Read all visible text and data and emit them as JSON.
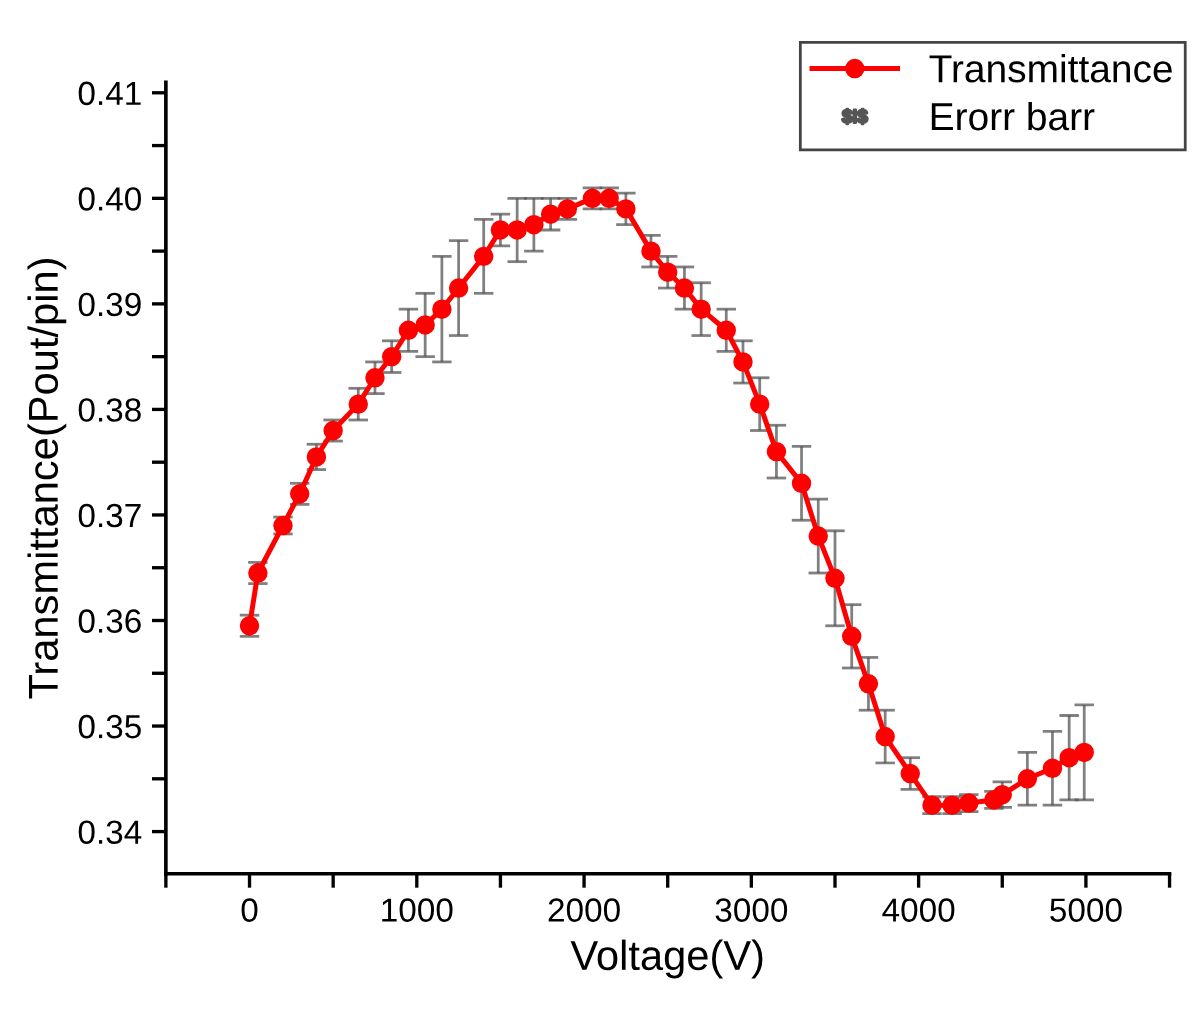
{
  "chart_data": {
    "type": "line",
    "xlabel": "Voltage(V)",
    "ylabel": "Transmittance(Pout/pin)",
    "x": [
      0,
      50,
      200,
      300,
      400,
      500,
      650,
      750,
      850,
      950,
      1050,
      1150,
      1250,
      1400,
      1500,
      1600,
      1700,
      1800,
      1900,
      2050,
      2150,
      2250,
      2400,
      2500,
      2600,
      2700,
      2850,
      2950,
      3050,
      3150,
      3300,
      3400,
      3500,
      3600,
      3700,
      3800,
      3950,
      4080,
      4200,
      4300,
      4450,
      4500,
      4650,
      4800,
      4900,
      4990
    ],
    "series": [
      {
        "name": "Transmittance",
        "color": "#ff0000",
        "values": [
          0.3595,
          0.3645,
          0.369,
          0.372,
          0.3755,
          0.378,
          0.3805,
          0.383,
          0.385,
          0.3875,
          0.388,
          0.3895,
          0.3915,
          0.3945,
          0.397,
          0.397,
          0.3975,
          0.3985,
          0.399,
          0.4,
          0.4,
          0.399,
          0.395,
          0.393,
          0.3915,
          0.3895,
          0.3875,
          0.3845,
          0.3805,
          0.376,
          0.373,
          0.368,
          0.364,
          0.3585,
          0.354,
          0.349,
          0.3455,
          0.3425,
          0.3425,
          0.3427,
          0.343,
          0.3435,
          0.345,
          0.346,
          0.347,
          0.3475
        ],
        "errors": [
          0.001,
          0.001,
          0.0008,
          0.001,
          0.0012,
          0.001,
          0.0015,
          0.0015,
          0.0015,
          0.002,
          0.003,
          0.005,
          0.0045,
          0.0035,
          0.0015,
          0.003,
          0.0025,
          0.0015,
          0.001,
          0.001,
          0.001,
          0.0015,
          0.0015,
          0.0015,
          0.002,
          0.0025,
          0.002,
          0.002,
          0.0025,
          0.0025,
          0.0035,
          0.0035,
          0.0045,
          0.003,
          0.0025,
          0.0025,
          0.0015,
          0.0008,
          0.0008,
          0.0008,
          0.0008,
          0.0012,
          0.0025,
          0.0035,
          0.004,
          0.0045
        ]
      }
    ],
    "annotations": [
      "Erorr barr"
    ],
    "marker": "circle",
    "line_style": "solid",
    "legend": "top right",
    "grid": false,
    "xlim": [
      -500,
      5500
    ],
    "xticks": [
      {
        "value": -500,
        "label": null
      },
      0,
      {
        "value": 500,
        "label": null
      },
      1000,
      {
        "value": 1500,
        "label": null
      },
      2000,
      {
        "value": 2500,
        "label": null
      },
      3000,
      {
        "value": 3500,
        "label": null
      },
      4000,
      {
        "value": 4500,
        "label": null
      },
      5000,
      {
        "value": 5500,
        "label": null
      }
    ],
    "ylim": [
      0.336,
      0.411
    ],
    "yticks": [
      {
        "value": 0.34,
        "label": "0.34"
      },
      {
        "value": 0.345,
        "label": null
      },
      {
        "value": 0.35,
        "label": "0.35"
      },
      {
        "value": 0.355,
        "label": null
      },
      {
        "value": 0.36,
        "label": "0.36"
      },
      {
        "value": 0.365,
        "label": null
      },
      {
        "value": 0.37,
        "label": "0.37"
      },
      {
        "value": 0.375,
        "label": null
      },
      {
        "value": 0.38,
        "label": "0.38"
      },
      {
        "value": 0.385,
        "label": null
      },
      {
        "value": 0.39,
        "label": "0.39"
      },
      {
        "value": 0.395,
        "label": null
      },
      {
        "value": 0.4,
        "label": "0.40"
      },
      {
        "value": 0.405,
        "label": null
      },
      {
        "value": 0.41,
        "label": "0.41"
      }
    ]
  }
}
